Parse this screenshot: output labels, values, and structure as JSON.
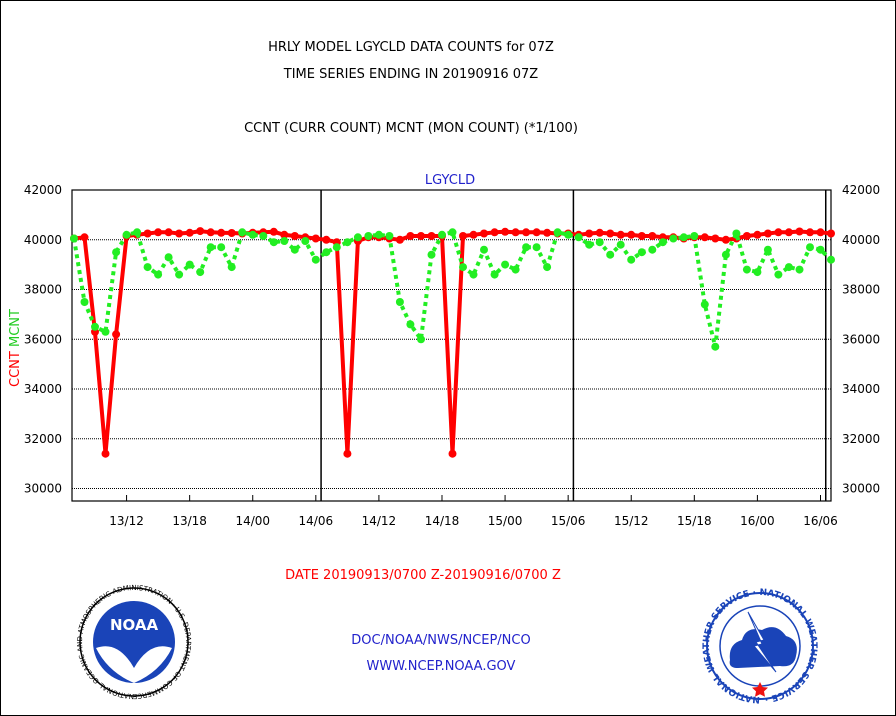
{
  "header": {
    "title_line1": "HRLY MODEL LGYCLD DATA COUNTS for 07Z",
    "title_line2": "TIME SERIES ENDING IN 20190916 07Z",
    "subtitle": "CCNT (CURR COUNT) MCNT (MON COUNT) (*1/100)"
  },
  "footer": {
    "date_range": "DATE 20190913/0700 Z-20190916/0700 Z",
    "org_line": "DOC/NOAA/NWS/NCEP/NCO",
    "url": "WWW.NCEP.NOAA.GOV"
  },
  "logos": {
    "noaa_text": "NOAA",
    "noaa_ring": "NATIONAL OCEANIC AND ATMOSPHERIC ADMINISTRATION · U.S. DEPARTMENT OF COMMERCE ·",
    "nws_ring": "NATIONAL WEATHER SERVICE · NATIONAL WEATHER SERVICE ·"
  },
  "colors": {
    "ccnt": "#ff0000",
    "mcnt": "#22ee22",
    "title": "#000000",
    "date": "#ff0000",
    "links": "#2222cc",
    "panel_label": "#2222cc"
  },
  "chart_data": {
    "type": "line",
    "panel_label": "LGYCLD",
    "ylabel_ccnt": "CCNT",
    "ylabel_mcnt": "MCNT",
    "ylim": [
      29500,
      42000
    ],
    "yticks": [
      30000,
      32000,
      34000,
      36000,
      38000,
      40000,
      42000
    ],
    "ytick_labels": [
      "30000",
      "32000",
      "34000",
      "36000",
      "38000",
      "40000",
      "42000"
    ],
    "x_unit": "hours since 13/07",
    "xlim": [
      0,
      72
    ],
    "xticks": [
      5,
      11,
      17,
      23,
      29,
      35,
      41,
      47,
      53,
      59,
      65,
      71
    ],
    "xtick_labels": [
      "13/12",
      "13/18",
      "14/00",
      "14/06",
      "14/12",
      "14/18",
      "15/00",
      "15/06",
      "15/12",
      "15/18",
      "16/00",
      "16/06"
    ],
    "day_lines": [
      23.5,
      47.5,
      71.5
    ],
    "grid": "horizontal",
    "series": [
      {
        "name": "CCNT",
        "values": [
          40050,
          40100,
          36300,
          31400,
          36200,
          40150,
          40200,
          40250,
          40300,
          40300,
          40250,
          40280,
          40350,
          40300,
          40280,
          40270,
          40250,
          40280,
          40300,
          40320,
          40200,
          40150,
          40100,
          40050,
          40000,
          39900,
          31400,
          39950,
          40100,
          40100,
          40050,
          40000,
          40150,
          40150,
          40150,
          40150,
          31400,
          40150,
          40200,
          40250,
          40300,
          40320,
          40300,
          40300,
          40300,
          40280,
          40250,
          40250,
          40200,
          40250,
          40280,
          40250,
          40200,
          40200,
          40150,
          40150,
          40100,
          40100,
          40050,
          40100,
          40100,
          40050,
          40000,
          40050,
          40150,
          40200,
          40250,
          40300,
          40300,
          40330,
          40300,
          40300,
          40250
        ]
      },
      {
        "name": "MCNT",
        "values": [
          40050,
          37500,
          36500,
          36300,
          39500,
          40200,
          40300,
          38900,
          38600,
          39300,
          38600,
          39000,
          38700,
          39700,
          39700,
          38900,
          40300,
          40200,
          40150,
          39900,
          39950,
          39600,
          39950,
          39200,
          39500,
          39700,
          39900,
          40100,
          40150,
          40200,
          40150,
          37500,
          36600,
          36000,
          39400,
          40200,
          40300,
          38900,
          38600,
          39600,
          38600,
          39000,
          38800,
          39700,
          39700,
          38900,
          40300,
          40200,
          40100,
          39800,
          39900,
          39400,
          39800,
          39200,
          39500,
          39600,
          39900,
          40050,
          40100,
          40150,
          37400,
          35700,
          39400,
          40250,
          38800,
          38700,
          39600,
          38600,
          38900,
          38800,
          39700,
          39600,
          39200
        ]
      }
    ]
  }
}
